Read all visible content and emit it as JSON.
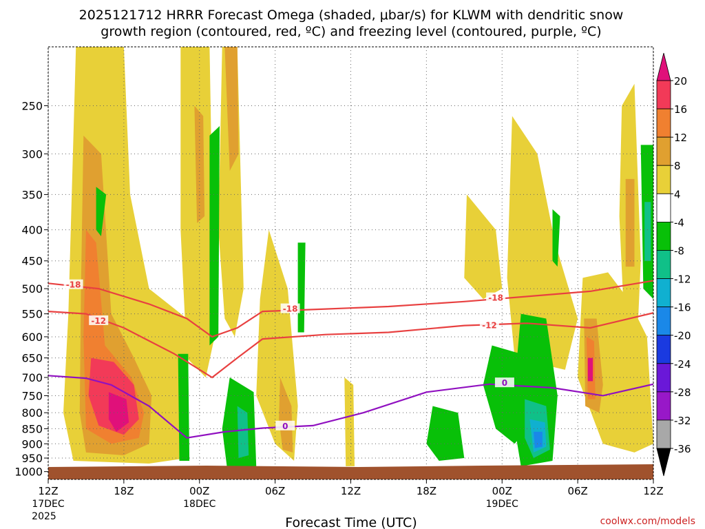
{
  "chart_data": {
    "type": "time-height contour",
    "title_line1": "2025121712 HRRR Forecast Omega (shaded, μbar/s) for KLWM with dendritic snow",
    "title_line2": "growth region (contoured, red, ºC) and freezing level (contoured, purple, ºC)",
    "xlabel": "Forecast Time (UTC)",
    "credit": "coolwx.com/models",
    "y_ticks": [
      250,
      300,
      350,
      400,
      450,
      500,
      550,
      600,
      650,
      700,
      750,
      800,
      850,
      900,
      950,
      1000
    ],
    "y_range_hpa": [
      1030,
      200
    ],
    "x_range_hours": [
      0,
      48
    ],
    "x_ticks": [
      {
        "hour": 0,
        "label": "12Z",
        "sub1": "17DEC",
        "sub2": "2025"
      },
      {
        "hour": 6,
        "label": "18Z",
        "sub1": "",
        "sub2": ""
      },
      {
        "hour": 12,
        "label": "00Z",
        "sub1": "18DEC",
        "sub2": ""
      },
      {
        "hour": 18,
        "label": "06Z",
        "sub1": "",
        "sub2": ""
      },
      {
        "hour": 24,
        "label": "12Z",
        "sub1": "",
        "sub2": ""
      },
      {
        "hour": 30,
        "label": "18Z",
        "sub1": "",
        "sub2": ""
      },
      {
        "hour": 36,
        "label": "00Z",
        "sub1": "19DEC",
        "sub2": ""
      },
      {
        "hour": 42,
        "label": "06Z",
        "sub1": "",
        "sub2": ""
      },
      {
        "hour": 48,
        "label": "12Z",
        "sub1": "",
        "sub2": ""
      }
    ],
    "colorbar": {
      "labels": [
        "20",
        "16",
        "12",
        "8",
        "4",
        "-4",
        "-8",
        "-12",
        "-16",
        "-20",
        "-24",
        "-28",
        "-32",
        "-36"
      ],
      "colors": [
        "#f23a58",
        "#f08030",
        "#e0a030",
        "#e8d038",
        "#ffffff",
        "#08c008",
        "#10c088",
        "#10b0d0",
        "#1a88e8",
        "#1a3ae0",
        "#6a18d8",
        "#9818c8",
        "#a8a8a8"
      ],
      "top_color": "#e0107a",
      "bottom_color": "#000000"
    },
    "omega_regions": [
      {
        "level": 4,
        "pts": [
          [
            2.2,
            200
          ],
          [
            6,
            200
          ],
          [
            6.5,
            350
          ],
          [
            8,
            500
          ],
          [
            11,
            560
          ],
          [
            11,
            950
          ],
          [
            8,
            970
          ],
          [
            2,
            960
          ],
          [
            1.2,
            800
          ],
          [
            1.6,
            550
          ]
        ]
      },
      {
        "level": 8,
        "pts": [
          [
            2.8,
            280
          ],
          [
            4.2,
            300
          ],
          [
            5,
            550
          ],
          [
            6.8,
            650
          ],
          [
            8.2,
            750
          ],
          [
            8,
            900
          ],
          [
            6,
            940
          ],
          [
            3,
            930
          ],
          [
            2.5,
            800
          ],
          [
            2.6,
            500
          ]
        ]
      },
      {
        "level": 12,
        "pts": [
          [
            3,
            400
          ],
          [
            3.8,
            420
          ],
          [
            4.5,
            620
          ],
          [
            6.6,
            700
          ],
          [
            7.6,
            800
          ],
          [
            7.2,
            880
          ],
          [
            5,
            900
          ],
          [
            3,
            850
          ],
          [
            2.8,
            600
          ]
        ]
      },
      {
        "level": 16,
        "pts": [
          [
            3.4,
            650
          ],
          [
            5.2,
            660
          ],
          [
            6.8,
            720
          ],
          [
            7.2,
            820
          ],
          [
            6,
            870
          ],
          [
            4,
            840
          ],
          [
            3.2,
            750
          ]
        ]
      },
      {
        "level": 20,
        "pts": [
          [
            4.8,
            740
          ],
          [
            6.2,
            760
          ],
          [
            6.4,
            830
          ],
          [
            5.4,
            860
          ],
          [
            4.8,
            820
          ]
        ]
      },
      {
        "level": 4,
        "pts": [
          [
            10.5,
            200
          ],
          [
            12.8,
            200
          ],
          [
            13.2,
            600
          ],
          [
            12.5,
            700
          ],
          [
            11,
            650
          ],
          [
            10.5,
            400
          ]
        ]
      },
      {
        "level": 8,
        "pts": [
          [
            11.6,
            250
          ],
          [
            12.3,
            260
          ],
          [
            12.4,
            380
          ],
          [
            11.8,
            390
          ]
        ]
      },
      {
        "level": 4,
        "pts": [
          [
            13.8,
            200
          ],
          [
            15,
            200
          ],
          [
            15.5,
            500
          ],
          [
            14.8,
            600
          ],
          [
            14,
            560
          ],
          [
            13.5,
            400
          ]
        ]
      },
      {
        "level": 8,
        "pts": [
          [
            14,
            200
          ],
          [
            15,
            200
          ],
          [
            15.1,
            300
          ],
          [
            14.4,
            320
          ]
        ]
      },
      {
        "level": 4,
        "pts": [
          [
            17.5,
            400
          ],
          [
            19,
            500
          ],
          [
            19.8,
            780
          ],
          [
            19.5,
            960
          ],
          [
            18,
            900
          ],
          [
            16.5,
            750
          ],
          [
            16.8,
            520
          ]
        ]
      },
      {
        "level": 8,
        "pts": [
          [
            18.4,
            700
          ],
          [
            19.3,
            780
          ],
          [
            19.4,
            930
          ],
          [
            18.6,
            920
          ],
          [
            18.3,
            820
          ]
        ]
      },
      {
        "level": 4,
        "pts": [
          [
            23.5,
            700
          ],
          [
            24.2,
            720
          ],
          [
            24.3,
            980
          ],
          [
            23.6,
            980
          ]
        ]
      },
      {
        "level": 4,
        "pts": [
          [
            33.2,
            350
          ],
          [
            35.5,
            400
          ],
          [
            36,
            500
          ],
          [
            34.5,
            520
          ],
          [
            33,
            480
          ]
        ]
      },
      {
        "level": 4,
        "pts": [
          [
            36.8,
            260
          ],
          [
            38.8,
            300
          ],
          [
            40.2,
            420
          ],
          [
            42,
            560
          ],
          [
            41,
            680
          ],
          [
            37,
            650
          ],
          [
            36.4,
            480
          ]
        ]
      },
      {
        "level": 4,
        "pts": [
          [
            42.4,
            480
          ],
          [
            44.4,
            470
          ],
          [
            46,
            520
          ],
          [
            47.5,
            600
          ],
          [
            48,
            900
          ],
          [
            46.5,
            930
          ],
          [
            44,
            900
          ],
          [
            42,
            700
          ]
        ]
      },
      {
        "level": 8,
        "pts": [
          [
            42.5,
            560
          ],
          [
            43.5,
            560
          ],
          [
            44,
            720
          ],
          [
            43.7,
            800
          ],
          [
            42.6,
            780
          ]
        ]
      },
      {
        "level": 12,
        "pts": [
          [
            42.7,
            600
          ],
          [
            43.3,
            610
          ],
          [
            43.4,
            760
          ],
          [
            42.8,
            760
          ]
        ]
      },
      {
        "level": 20,
        "pts": [
          [
            42.8,
            650
          ],
          [
            43.2,
            650
          ],
          [
            43.2,
            710
          ],
          [
            42.8,
            710
          ]
        ]
      },
      {
        "level": 4,
        "pts": [
          [
            45.5,
            250
          ],
          [
            46.5,
            230
          ],
          [
            47,
            450
          ],
          [
            46.8,
            560
          ],
          [
            45.6,
            520
          ],
          [
            45.3,
            380
          ]
        ]
      },
      {
        "level": 8,
        "pts": [
          [
            45.8,
            330
          ],
          [
            46.5,
            330
          ],
          [
            46.5,
            460
          ],
          [
            45.8,
            460
          ]
        ]
      },
      {
        "level": -4,
        "pts": [
          [
            3.8,
            340
          ],
          [
            4.6,
            350
          ],
          [
            4.2,
            410
          ],
          [
            3.8,
            400
          ]
        ]
      },
      {
        "level": -4,
        "pts": [
          [
            12.8,
            280
          ],
          [
            13.6,
            270
          ],
          [
            13.5,
            600
          ],
          [
            12.8,
            620
          ]
        ]
      },
      {
        "level": -4,
        "pts": [
          [
            10.3,
            640
          ],
          [
            11.1,
            640
          ],
          [
            11.2,
            960
          ],
          [
            10.4,
            960
          ]
        ]
      },
      {
        "level": -4,
        "pts": [
          [
            14.4,
            700
          ],
          [
            16.3,
            740
          ],
          [
            16.5,
            980
          ],
          [
            14.2,
            990
          ],
          [
            13.8,
            850
          ]
        ]
      },
      {
        "level": -8,
        "pts": [
          [
            15,
            780
          ],
          [
            15.8,
            800
          ],
          [
            15.9,
            940
          ],
          [
            15.1,
            950
          ]
        ]
      },
      {
        "level": -4,
        "pts": [
          [
            19.8,
            420
          ],
          [
            20.4,
            420
          ],
          [
            20.3,
            590
          ],
          [
            19.8,
            590
          ]
        ]
      },
      {
        "level": -4,
        "pts": [
          [
            30.5,
            780
          ],
          [
            32.5,
            800
          ],
          [
            33,
            950
          ],
          [
            31,
            960
          ],
          [
            30,
            900
          ]
        ]
      },
      {
        "level": -4,
        "pts": [
          [
            35.2,
            620
          ],
          [
            37.5,
            640
          ],
          [
            38.5,
            820
          ],
          [
            37,
            900
          ],
          [
            35.5,
            850
          ],
          [
            34.5,
            720
          ]
        ]
      },
      {
        "level": -4,
        "pts": [
          [
            37.5,
            550
          ],
          [
            39.5,
            560
          ],
          [
            40.4,
            750
          ],
          [
            40,
            960
          ],
          [
            37.5,
            980
          ],
          [
            36.8,
            800
          ]
        ]
      },
      {
        "level": -8,
        "pts": [
          [
            37.8,
            760
          ],
          [
            39.5,
            780
          ],
          [
            39.8,
            920
          ],
          [
            38.5,
            950
          ],
          [
            37.8,
            880
          ]
        ]
      },
      {
        "level": -12,
        "pts": [
          [
            38.2,
            820
          ],
          [
            39.4,
            830
          ],
          [
            39.5,
            910
          ],
          [
            38.5,
            930
          ]
        ]
      },
      {
        "level": -16,
        "pts": [
          [
            38.5,
            860
          ],
          [
            39.2,
            860
          ],
          [
            39.2,
            910
          ],
          [
            38.6,
            915
          ]
        ]
      },
      {
        "level": -4,
        "pts": [
          [
            40,
            370
          ],
          [
            40.6,
            380
          ],
          [
            40.4,
            460
          ],
          [
            40,
            450
          ]
        ]
      },
      {
        "level": -4,
        "pts": [
          [
            47,
            290
          ],
          [
            48,
            290
          ],
          [
            48,
            520
          ],
          [
            47.2,
            500
          ]
        ]
      },
      {
        "level": -8,
        "pts": [
          [
            47.3,
            360
          ],
          [
            47.8,
            360
          ],
          [
            47.8,
            450
          ],
          [
            47.3,
            450
          ]
        ]
      }
    ],
    "contours": [
      {
        "label": "-18",
        "color": "#e84040",
        "pts": [
          [
            0,
            490
          ],
          [
            4,
            500
          ],
          [
            8,
            530
          ],
          [
            11,
            560
          ],
          [
            13,
            600
          ],
          [
            15,
            580
          ],
          [
            17,
            545
          ],
          [
            22,
            540
          ],
          [
            27,
            535
          ],
          [
            33,
            525
          ],
          [
            38,
            515
          ],
          [
            43,
            505
          ],
          [
            48,
            485
          ]
        ]
      },
      {
        "label": "-12",
        "color": "#e84040",
        "pts": [
          [
            0,
            545
          ],
          [
            3,
            550
          ],
          [
            6,
            580
          ],
          [
            10,
            640
          ],
          [
            13,
            700
          ],
          [
            15,
            650
          ],
          [
            17,
            605
          ],
          [
            22,
            595
          ],
          [
            27,
            590
          ],
          [
            33,
            575
          ],
          [
            38,
            570
          ],
          [
            43,
            580
          ],
          [
            48,
            548
          ]
        ]
      },
      {
        "label": "0",
        "color": "#9010c0",
        "pts": [
          [
            0,
            695
          ],
          [
            3,
            702
          ],
          [
            5,
            720
          ],
          [
            8,
            780
          ],
          [
            11,
            880
          ],
          [
            14,
            860
          ],
          [
            17,
            848
          ],
          [
            21,
            840
          ],
          [
            25,
            800
          ],
          [
            30,
            740
          ],
          [
            35,
            718
          ],
          [
            40,
            728
          ],
          [
            44,
            750
          ],
          [
            48,
            718
          ]
        ]
      }
    ],
    "contour_labels": [
      {
        "text": "-18",
        "hour": 2,
        "p": 493
      },
      {
        "text": "-12",
        "hour": 4,
        "p": 565
      },
      {
        "text": "-18",
        "hour": 19.2,
        "p": 540
      },
      {
        "text": "-18",
        "hour": 35.5,
        "p": 518
      },
      {
        "text": "-12",
        "hour": 35,
        "p": 575
      },
      {
        "text": "0",
        "hour": 18.8,
        "p": 842
      },
      {
        "text": "0",
        "hour": 36.2,
        "p": 715
      }
    ]
  }
}
